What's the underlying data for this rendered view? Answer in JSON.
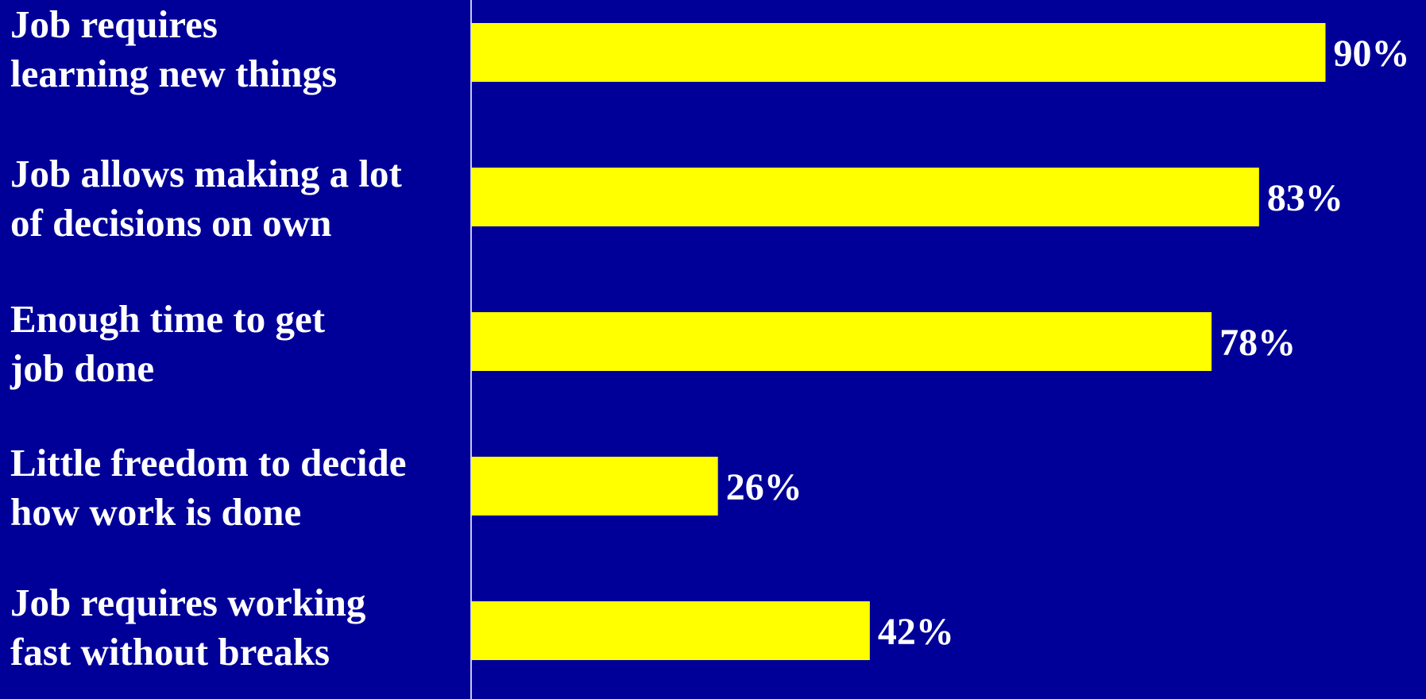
{
  "chart_data": {
    "type": "bar",
    "orientation": "horizontal",
    "categories": [
      "Job requires\nlearning new things",
      "Job allows making a lot\nof  decisions on own",
      "Enough time to get\njob done",
      "Little freedom to decide\nhow work is done",
      "Job requires working\nfast without breaks"
    ],
    "values": [
      90,
      83,
      78,
      26,
      42
    ],
    "value_labels": [
      "90%",
      "83%",
      "78%",
      "26%",
      "42%"
    ],
    "xlim": [
      0,
      100
    ],
    "grid": false,
    "legend": "none"
  },
  "colors": {
    "background": "#000099",
    "bar": "#ffff00",
    "text": "#ffffff",
    "axis": "#c8c8e6"
  }
}
